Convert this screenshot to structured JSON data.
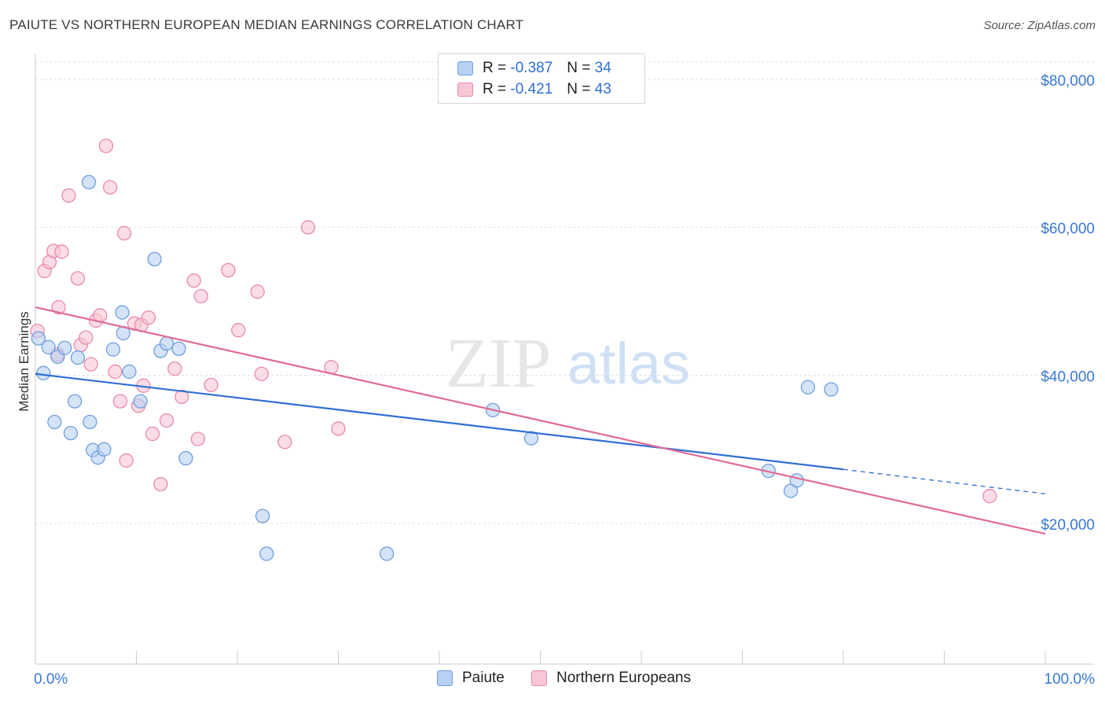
{
  "header": {
    "title": "PAIUTE VS NORTHERN EUROPEAN MEDIAN EARNINGS CORRELATION CHART",
    "source": "Source: ZipAtlas.com"
  },
  "watermark": {
    "zip": "ZIP",
    "atlas": "atlas"
  },
  "legend": {
    "rows": [
      {
        "r_label": "R =",
        "r_value": "-0.387",
        "n_label": "N =",
        "n_value": "34"
      },
      {
        "r_label": "R =",
        "r_value": "-0.421",
        "n_label": "N =",
        "n_value": "43"
      }
    ],
    "bottom": [
      "Paiute",
      "Northern Europeans"
    ]
  },
  "colors": {
    "paiute_fill": "#b7d0f3",
    "paiute_stroke": "#6f9fdf",
    "paiute_line": "#2f6fd6",
    "northern_fill": "#f8c6d4",
    "northern_stroke": "#e98aa8",
    "northern_line": "#e06c93",
    "axis_label": "#3a78d4",
    "grid": "#dddddd"
  },
  "chart_data": {
    "type": "scatter",
    "title": "PAIUTE VS NORTHERN EUROPEAN MEDIAN EARNINGS CORRELATION CHART",
    "xlabel": "",
    "ylabel": "Median Earnings",
    "xlim": [
      0,
      100
    ],
    "ylim": [
      1000,
      82000
    ],
    "x_tick_labels": [
      "0.0%",
      "100.0%"
    ],
    "y_ticks": [
      20000,
      40000,
      60000,
      80000
    ],
    "y_tick_labels": [
      "$20,000",
      "$40,000",
      "$60,000",
      "$80,000"
    ],
    "grid": true,
    "series": [
      {
        "name": "Paiute",
        "points": [
          [
            0.3,
            45000
          ],
          [
            0.8,
            40300
          ],
          [
            1.3,
            43800
          ],
          [
            1.9,
            33700
          ],
          [
            2.2,
            42500
          ],
          [
            2.9,
            43700
          ],
          [
            3.5,
            32200
          ],
          [
            3.9,
            36500
          ],
          [
            4.2,
            42400
          ],
          [
            5.3,
            66100
          ],
          [
            5.4,
            33700
          ],
          [
            5.7,
            29900
          ],
          [
            6.2,
            28900
          ],
          [
            6.8,
            30000
          ],
          [
            7.7,
            43500
          ],
          [
            8.6,
            48500
          ],
          [
            8.7,
            45700
          ],
          [
            9.3,
            40500
          ],
          [
            10.4,
            36500
          ],
          [
            11.8,
            55700
          ],
          [
            12.4,
            43300
          ],
          [
            13.0,
            44300
          ],
          [
            14.2,
            43600
          ],
          [
            14.9,
            28800
          ],
          [
            22.5,
            21000
          ],
          [
            22.9,
            15900
          ],
          [
            34.8,
            15900
          ],
          [
            45.3,
            35300
          ],
          [
            49.1,
            31500
          ],
          [
            72.6,
            27100
          ],
          [
            74.8,
            24400
          ],
          [
            75.4,
            25800
          ],
          [
            76.5,
            38400
          ],
          [
            78.8,
            38100
          ]
        ],
        "trend": {
          "x": [
            0,
            80
          ],
          "y": [
            40200,
            27300
          ],
          "dashed_to": [
            100,
            24000
          ]
        }
      },
      {
        "name": "Northern Europeans",
        "points": [
          [
            0.2,
            46000
          ],
          [
            0.9,
            54100
          ],
          [
            1.4,
            55300
          ],
          [
            1.8,
            56800
          ],
          [
            2.2,
            42800
          ],
          [
            2.3,
            49200
          ],
          [
            2.6,
            56700
          ],
          [
            3.3,
            64300
          ],
          [
            4.2,
            53100
          ],
          [
            4.5,
            44100
          ],
          [
            5.0,
            45100
          ],
          [
            5.5,
            41500
          ],
          [
            6.0,
            47400
          ],
          [
            6.4,
            48100
          ],
          [
            7.0,
            71000
          ],
          [
            7.4,
            65400
          ],
          [
            7.9,
            40500
          ],
          [
            8.4,
            36500
          ],
          [
            8.8,
            59200
          ],
          [
            9.0,
            28500
          ],
          [
            9.8,
            47000
          ],
          [
            10.2,
            35900
          ],
          [
            10.5,
            46800
          ],
          [
            10.7,
            38600
          ],
          [
            11.2,
            47800
          ],
          [
            11.6,
            32100
          ],
          [
            12.4,
            25300
          ],
          [
            13.0,
            33900
          ],
          [
            13.8,
            40900
          ],
          [
            14.5,
            37100
          ],
          [
            15.7,
            52800
          ],
          [
            16.1,
            31400
          ],
          [
            16.4,
            50700
          ],
          [
            17.4,
            38700
          ],
          [
            19.1,
            54200
          ],
          [
            20.1,
            46100
          ],
          [
            22.0,
            51300
          ],
          [
            22.4,
            40200
          ],
          [
            24.7,
            31000
          ],
          [
            27.0,
            60000
          ],
          [
            29.3,
            41100
          ],
          [
            30.0,
            32800
          ],
          [
            94.5,
            23700
          ]
        ],
        "trend": {
          "x": [
            0,
            100
          ],
          "y": [
            49200,
            18600
          ]
        }
      }
    ]
  }
}
